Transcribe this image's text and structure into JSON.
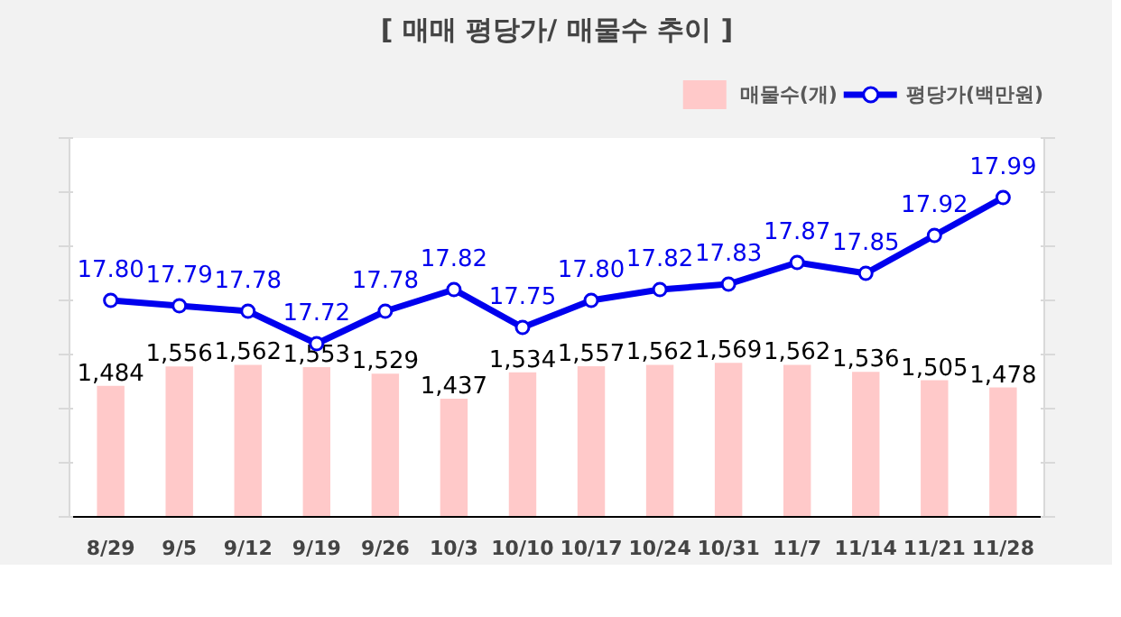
{
  "chart_data": {
    "type": "bar",
    "title": "[ 매매 평당가/ 매물수 추이 ]",
    "categories": [
      "8/29",
      "9/5",
      "9/12",
      "9/19",
      "9/26",
      "10/3",
      "10/10",
      "10/17",
      "10/24",
      "10/31",
      "11/7",
      "11/14",
      "11/21",
      "11/28"
    ],
    "series": [
      {
        "name": "매물수(개)",
        "color": "#ffc9c9",
        "values": [
          1484,
          1556,
          1562,
          1553,
          1529,
          1437,
          1534,
          1557,
          1562,
          1569,
          1562,
          1536,
          1505,
          1478
        ],
        "value_labels": [
          "1,484",
          "1,556",
          "1,562",
          "1,553",
          "1,529",
          "1,437",
          "1,534",
          "1,557",
          "1,562",
          "1,569",
          "1,562",
          "1,536",
          "1,505",
          "1,478"
        ]
      },
      {
        "name": "평당가(백만원)",
        "type": "line",
        "axis": "y2",
        "color": "#0000ee",
        "marker": "circle",
        "values": [
          17.8,
          17.79,
          17.78,
          17.72,
          17.78,
          17.82,
          17.75,
          17.8,
          17.82,
          17.83,
          17.87,
          17.85,
          17.92,
          17.99
        ],
        "value_labels": [
          "17.80",
          "17.79",
          "17.78",
          "17.72",
          "17.78",
          "17.82",
          "17.75",
          "17.80",
          "17.82",
          "17.83",
          "17.87",
          "17.85",
          "17.92",
          "17.99"
        ]
      }
    ],
    "ylim": [
      1000,
      2400
    ],
    "yticks": [
      {
        "value": 1000,
        "label": null
      },
      {
        "value": 1200,
        "label": null
      },
      {
        "value": 1400,
        "label": null
      },
      {
        "value": 1600,
        "label": null
      },
      {
        "value": 1800,
        "label": null
      },
      {
        "value": 2000,
        "label": null
      },
      {
        "value": 2200,
        "label": null
      },
      {
        "value": 2400,
        "label": null
      }
    ],
    "y2lim": [
      17.4,
      18.1
    ],
    "y2ticks": [
      {
        "value": 17.4,
        "label": null
      },
      {
        "value": 17.5,
        "label": null
      },
      {
        "value": 17.6,
        "label": null
      },
      {
        "value": 17.7,
        "label": null
      },
      {
        "value": 17.8,
        "label": null
      },
      {
        "value": 17.9,
        "label": null
      },
      {
        "value": 18.0,
        "label": null
      },
      {
        "value": 18.1,
        "label": null
      }
    ],
    "tick_labels": "x",
    "legend": "top right",
    "grid": false
  }
}
